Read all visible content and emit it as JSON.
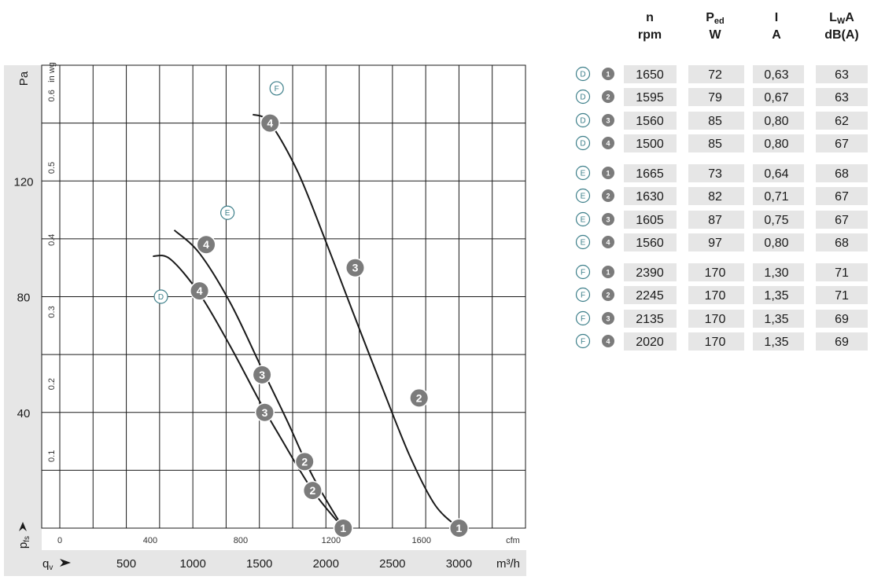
{
  "chart_data": {
    "type": "line",
    "title": "",
    "y_axis": {
      "label": "Pa",
      "side_label": "p",
      "side_sub": "fs",
      "ticks": [
        40,
        80,
        120
      ],
      "range": [
        0,
        160
      ]
    },
    "y_axis_inwg": {
      "label": "in wg",
      "ticks": [
        "0.1",
        "0.2",
        "0.3",
        "0.4",
        "0.5",
        "0.6"
      ],
      "tick_values": [
        0.1,
        0.2,
        0.3,
        0.4,
        0.5,
        0.6
      ]
    },
    "x_axis_cfm": {
      "unit": "cfm",
      "ticks": [
        "0",
        "400",
        "800",
        "1200",
        "1600"
      ],
      "tick_values": [
        0,
        400,
        800,
        1200,
        1600
      ]
    },
    "x_axis_m3h": {
      "label": "q",
      "sub": "v",
      "unit": "m³/h",
      "ticks": [
        "500",
        "1000",
        "1500",
        "2000",
        "2500",
        "3000"
      ],
      "tick_values": [
        500,
        1000,
        1500,
        2000,
        2500,
        3000
      ],
      "range": [
        0,
        3500
      ]
    },
    "series": [
      {
        "name": "D",
        "points": [
          [
            700,
            94
          ],
          [
            830,
            93
          ],
          [
            1050,
            81
          ],
          [
            1280,
            63
          ],
          [
            1500,
            44
          ],
          [
            1650,
            32
          ],
          [
            1900,
            13
          ],
          [
            2130,
            0
          ]
        ],
        "markers": [
          {
            "label": "1",
            "x": 2130,
            "y": 0
          },
          {
            "label": "2",
            "x": 1900,
            "y": 13
          },
          {
            "label": "3",
            "x": 1540,
            "y": 40
          },
          {
            "label": "4",
            "x": 1050,
            "y": 82
          }
        ]
      },
      {
        "name": "E",
        "points": [
          [
            860,
            103
          ],
          [
            1050,
            95
          ],
          [
            1280,
            78
          ],
          [
            1500,
            57
          ],
          [
            1710,
            37
          ],
          [
            1900,
            18
          ],
          [
            2130,
            0
          ]
        ],
        "markers": [
          {
            "label": "1",
            "x": 2130,
            "y": 0
          },
          {
            "label": "2",
            "x": 1840,
            "y": 23
          },
          {
            "label": "3",
            "x": 1520,
            "y": 53
          },
          {
            "label": "4",
            "x": 1100,
            "y": 98
          }
        ]
      },
      {
        "name": "F",
        "points": [
          [
            1450,
            143
          ],
          [
            1580,
            140
          ],
          [
            1790,
            123
          ],
          [
            2000,
            99
          ],
          [
            2200,
            75
          ],
          [
            2420,
            49
          ],
          [
            2630,
            25
          ],
          [
            2820,
            8
          ],
          [
            3000,
            0
          ]
        ],
        "markers": [
          {
            "label": "1",
            "x": 3000,
            "y": 0
          },
          {
            "label": "2",
            "x": 2700,
            "y": 45
          },
          {
            "label": "3",
            "x": 2220,
            "y": 90
          },
          {
            "label": "4",
            "x": 1580,
            "y": 140
          }
        ]
      }
    ],
    "curve_labels": [
      {
        "letter": "D",
        "x": 760,
        "y": 80
      },
      {
        "letter": "E",
        "x": 1260,
        "y": 109
      },
      {
        "letter": "F",
        "x": 1630,
        "y": 152
      }
    ]
  },
  "table": {
    "headers": [
      {
        "line1": "n",
        "line2": "rpm"
      },
      {
        "line1": "P",
        "line1_sub": "ed",
        "line2": "W"
      },
      {
        "line1": "I",
        "line2": "A"
      },
      {
        "line1": "L",
        "line1_sub": "W",
        "line1_after": "A",
        "line2": "dB(A)"
      }
    ],
    "rows": [
      {
        "curve": "D",
        "point": "1",
        "n": "1650",
        "p": "72",
        "i": "0,63",
        "lwa": "63"
      },
      {
        "curve": "D",
        "point": "2",
        "n": "1595",
        "p": "79",
        "i": "0,67",
        "lwa": "63"
      },
      {
        "curve": "D",
        "point": "3",
        "n": "1560",
        "p": "85",
        "i": "0,80",
        "lwa": "62"
      },
      {
        "curve": "D",
        "point": "4",
        "n": "1500",
        "p": "85",
        "i": "0,80",
        "lwa": "67"
      },
      {
        "curve": "E",
        "point": "1",
        "n": "1665",
        "p": "73",
        "i": "0,64",
        "lwa": "68"
      },
      {
        "curve": "E",
        "point": "2",
        "n": "1630",
        "p": "82",
        "i": "0,71",
        "lwa": "67"
      },
      {
        "curve": "E",
        "point": "3",
        "n": "1605",
        "p": "87",
        "i": "0,75",
        "lwa": "67"
      },
      {
        "curve": "E",
        "point": "4",
        "n": "1560",
        "p": "97",
        "i": "0,80",
        "lwa": "68"
      },
      {
        "curve": "F",
        "point": "1",
        "n": "2390",
        "p": "170",
        "i": "1,30",
        "lwa": "71"
      },
      {
        "curve": "F",
        "point": "2",
        "n": "2245",
        "p": "170",
        "i": "1,35",
        "lwa": "71"
      },
      {
        "curve": "F",
        "point": "3",
        "n": "2135",
        "p": "170",
        "i": "1,35",
        "lwa": "69"
      },
      {
        "curve": "F",
        "point": "4",
        "n": "2020",
        "p": "170",
        "i": "1,35",
        "lwa": "69"
      }
    ]
  },
  "colors": {
    "band": "#e6e6e6",
    "marker": "#7b7b7b",
    "curve_letter": "#3d7f8a",
    "line": "#1a1a1a"
  }
}
